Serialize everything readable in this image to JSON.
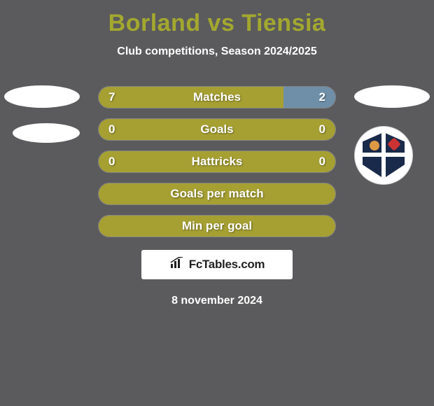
{
  "background_color": "#5b5b5d",
  "title_color": "#a3a82f",
  "text_color": "#ffffff",
  "title": "Borland vs Tiensia",
  "subtitle": "Club competitions, Season 2024/2025",
  "bars": [
    {
      "label": "Matches",
      "left_val": "7",
      "right_val": "2",
      "left_pct": 78,
      "left_color": "#a6a033",
      "right_color": "#6f8fa8"
    },
    {
      "label": "Goals",
      "left_val": "0",
      "right_val": "0",
      "left_pct": 100,
      "left_color": "#a6a033",
      "right_color": "#a6a033"
    },
    {
      "label": "Hattricks",
      "left_val": "0",
      "right_val": "0",
      "left_pct": 100,
      "left_color": "#a6a033",
      "right_color": "#a6a033"
    },
    {
      "label": "Goals per match",
      "left_val": "",
      "right_val": "",
      "left_pct": 100,
      "left_color": "#a6a033",
      "right_color": "#a6a033"
    },
    {
      "label": "Min per goal",
      "left_val": "",
      "right_val": "",
      "left_pct": 100,
      "left_color": "#a6a033",
      "right_color": "#a6a033"
    }
  ],
  "side_ellipse_color": "#ffffff",
  "fct": {
    "box_bg": "#ffffff",
    "text_color": "#222222",
    "text": "FcTables.com"
  },
  "date": "8 november 2024"
}
